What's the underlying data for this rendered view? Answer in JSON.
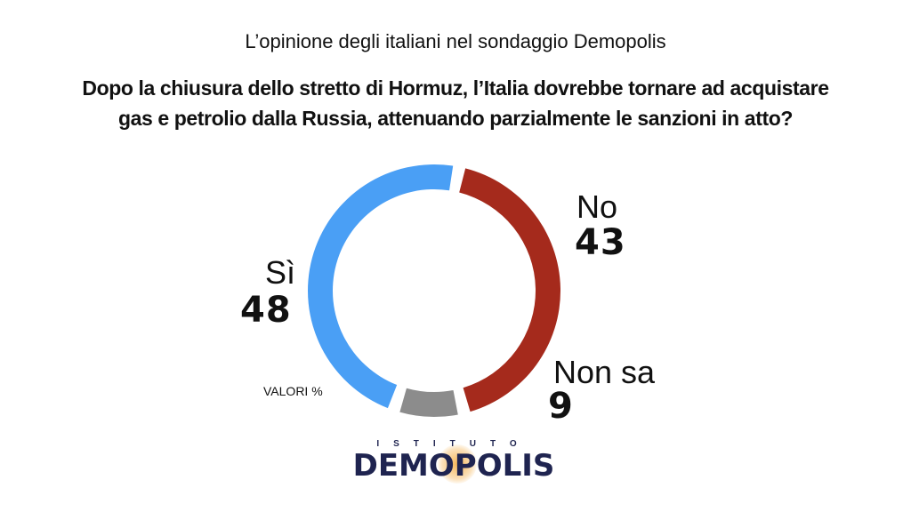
{
  "header": {
    "subtitle": "L’opinione degli italiani nel sondaggio Demopolis",
    "question_line1": "Dopo la chiusura dello stretto di Hormuz, l’Italia dovrebbe tornare ad acquistare",
    "question_line2": "gas e petrolio dalla Russia, attenuando parzialmente le sanzioni in atto?"
  },
  "chart_data": {
    "type": "pie",
    "subtype": "donut",
    "unit_note": "VALORI %",
    "slices": [
      {
        "label": "No",
        "value": 43,
        "color": "#a52a1c"
      },
      {
        "label": "Non sa",
        "value": 9,
        "color": "#8c8c8c"
      },
      {
        "label": "Sì",
        "value": 48,
        "color": "#4a9ff5"
      }
    ]
  },
  "logo": {
    "top_text": "ISTITUTO",
    "word": "DEMOPOLIS"
  }
}
